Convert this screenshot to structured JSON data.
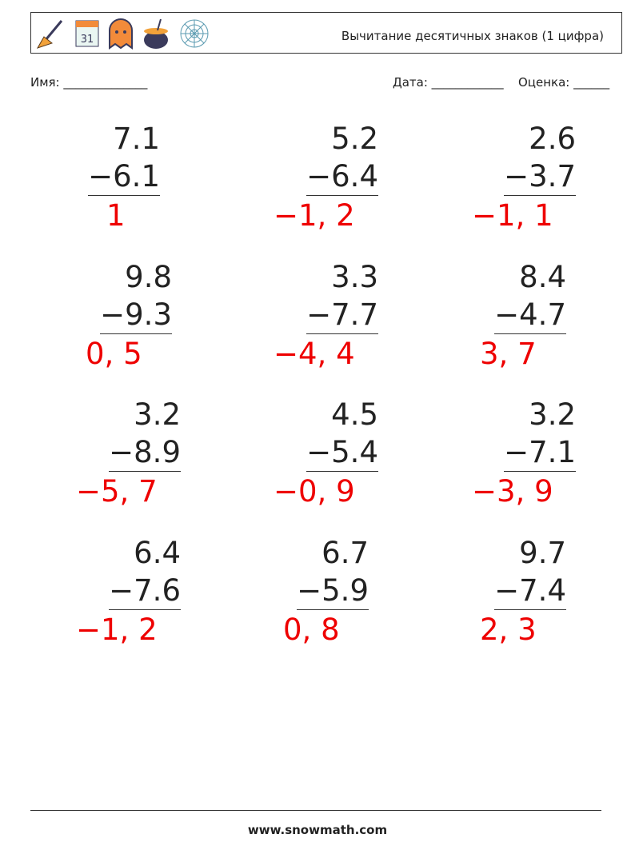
{
  "header": {
    "title": "Вычитание десятичных знаков (1 цифра)"
  },
  "fields": {
    "name": "Имя: ______________",
    "date": "Дата: ____________",
    "grade": "Оценка: ______"
  },
  "problems": [
    {
      "top": "7.1",
      "bottom": "−6.1",
      "answer": "1"
    },
    {
      "top": "5.2",
      "bottom": "−6.4",
      "answer": "−1, 2"
    },
    {
      "top": "2.6",
      "bottom": "−3.7",
      "answer": "−1, 1"
    },
    {
      "top": "9.8",
      "bottom": "−9.3",
      "answer": "0, 5"
    },
    {
      "top": "3.3",
      "bottom": "−7.7",
      "answer": "−4, 4"
    },
    {
      "top": "8.4",
      "bottom": "−4.7",
      "answer": "3, 7"
    },
    {
      "top": "3.2",
      "bottom": "−8.9",
      "answer": "−5, 7"
    },
    {
      "top": "4.5",
      "bottom": "−5.4",
      "answer": "−0, 9"
    },
    {
      "top": "3.2",
      "bottom": "−7.1",
      "answer": "−3, 9"
    },
    {
      "top": "6.4",
      "bottom": "−7.6",
      "answer": "−1, 2"
    },
    {
      "top": "6.7",
      "bottom": "−5.9",
      "answer": "0, 8"
    },
    {
      "top": "9.7",
      "bottom": "−7.4",
      "answer": "2, 3"
    }
  ],
  "footer": {
    "site": "www.snowmath.com"
  }
}
